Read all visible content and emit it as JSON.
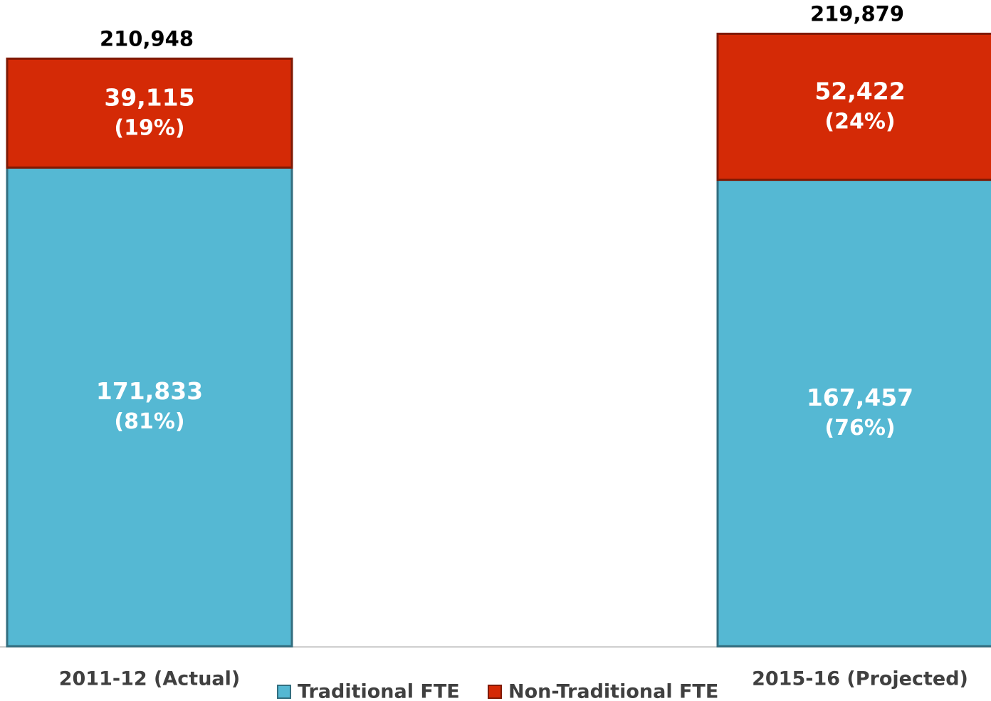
{
  "chart_data": {
    "type": "stacked_bar",
    "categories": [
      "2011-12 (Actual)",
      "2015-16 (Projected)"
    ],
    "series": [
      {
        "name": "Traditional FTE",
        "color": "#55b8d3",
        "values": [
          171833,
          167457
        ],
        "value_labels": [
          "171,833",
          "167,457"
        ],
        "percent_labels": [
          "(81%)",
          "(76%)"
        ]
      },
      {
        "name": "Non-Traditional FTE",
        "color": "#d42a06",
        "values": [
          39115,
          52422
        ],
        "value_labels": [
          "39,115",
          "52,422"
        ],
        "percent_labels": [
          "(19%)",
          "(24%)"
        ]
      }
    ],
    "total_labels": [
      "210,948",
      "219,879"
    ],
    "ylim": [
      0,
      232000
    ],
    "legend": "bottom"
  }
}
